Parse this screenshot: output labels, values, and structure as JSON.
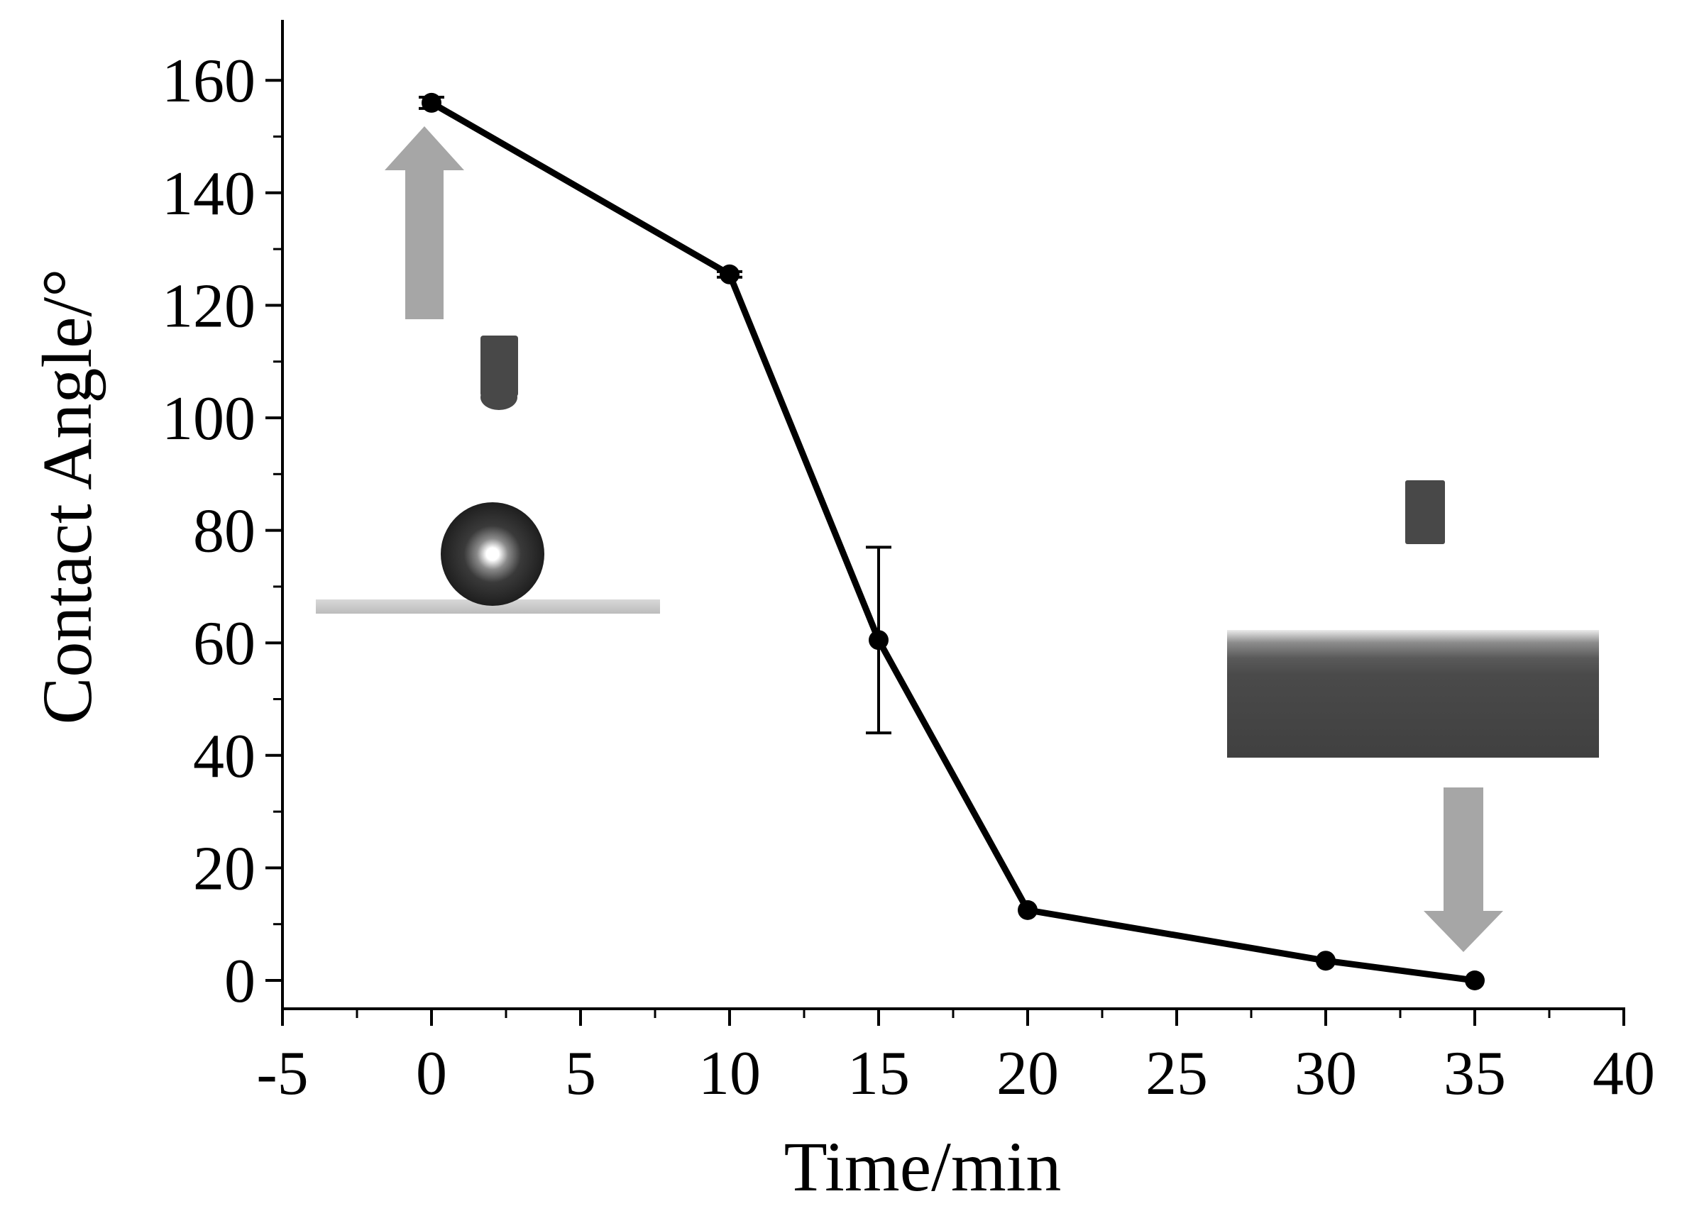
{
  "chart_data": {
    "type": "line",
    "xlabel": "Time/min",
    "ylabel": "Contact Angle/°",
    "xlim": [
      -5,
      40
    ],
    "ylim": [
      -5,
      170
    ],
    "xticks": [
      -5,
      0,
      5,
      10,
      15,
      20,
      25,
      30,
      35,
      40
    ],
    "yticks": [
      0,
      20,
      40,
      60,
      80,
      100,
      120,
      140,
      160
    ],
    "x_minor_step": 2.5,
    "y_minor_step": 10,
    "grid": false,
    "legend": "none",
    "series": [
      {
        "x": [
          0,
          10,
          15,
          20,
          30,
          35
        ],
        "y": [
          156,
          125.5,
          60.5,
          12.5,
          3.5,
          0
        ],
        "error": [
          1,
          0.5,
          16.5,
          0,
          0,
          0
        ],
        "color": "#000000",
        "marker": "circle"
      }
    ],
    "insets": [
      {
        "name": "superhydrophobic-droplet-photo",
        "near_x": 0,
        "arrow": "up",
        "arrow_color": "#a6a6a6"
      },
      {
        "name": "superhydrophilic-spread-photo",
        "near_x": 35,
        "arrow": "down",
        "arrow_color": "#a6a6a6"
      }
    ]
  }
}
